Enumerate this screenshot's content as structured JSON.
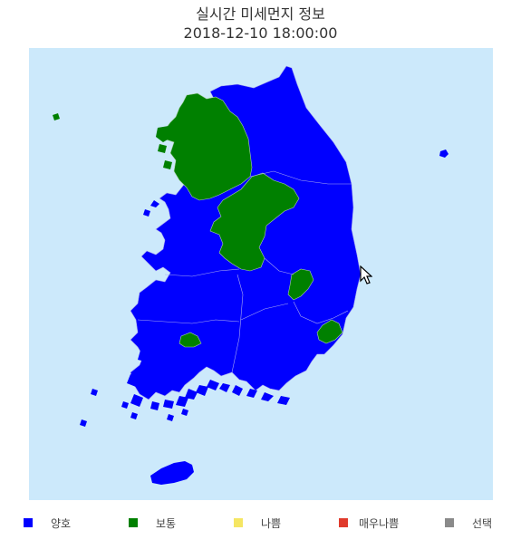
{
  "header": {
    "title": "실시간 미세먼지 정보",
    "timestamp": "2018-12-10 18:00:00"
  },
  "map": {
    "colors": {
      "sea": "#cce9fb",
      "good": "#0000ff",
      "normal": "#008000",
      "border": "#a9a9f0"
    }
  },
  "legend": {
    "items": [
      {
        "label": "양호",
        "color": "#0000ff"
      },
      {
        "label": "보통",
        "color": "#008000"
      },
      {
        "label": "나쁨",
        "color": "#f5e663"
      },
      {
        "label": "매우나쁨",
        "color": "#e03a2c"
      },
      {
        "label": "선택",
        "color": "#8a8a8a"
      }
    ]
  },
  "cursor": {
    "icon": "mouse-pointer-icon"
  }
}
